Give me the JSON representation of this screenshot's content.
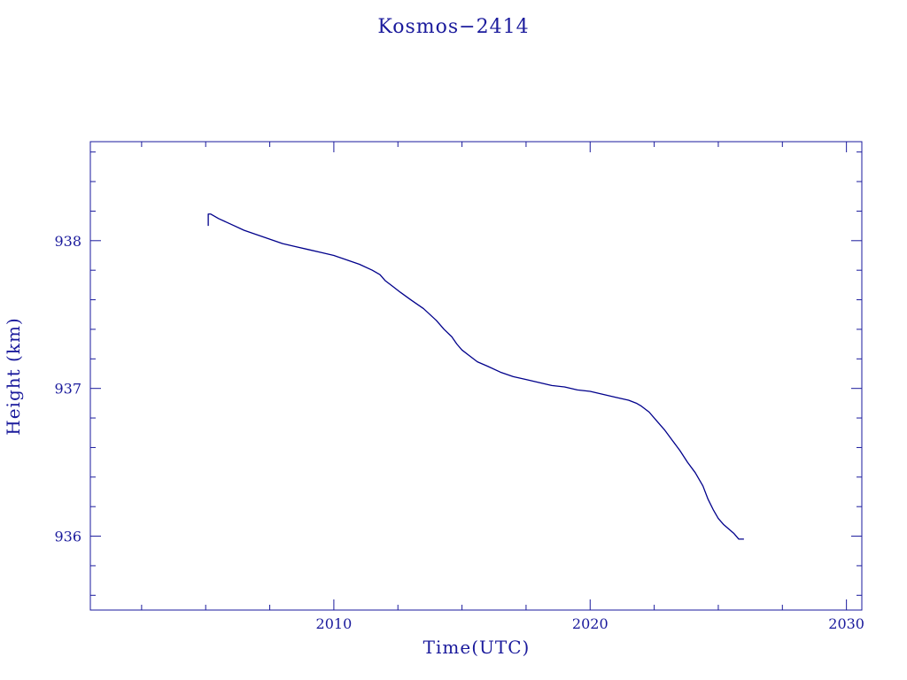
{
  "chart_data": {
    "type": "line",
    "title": "Kosmos−2414",
    "xlabel": "Time(UTC)",
    "ylabel": "Height (km)",
    "xlim": [
      2000.5,
      2030.6
    ],
    "ylim": [
      935.5,
      938.67
    ],
    "x_ticks": [
      2010,
      2020,
      2030
    ],
    "x_tick_labels": [
      "2010",
      "2020",
      "2030"
    ],
    "y_ticks": [
      936,
      937,
      938
    ],
    "y_tick_labels": [
      "936",
      "937",
      "938"
    ],
    "x_minor_step": 2.5,
    "y_minor_step": 0.2,
    "grid": false,
    "line_color": "#00008b",
    "text_color": "#1a1a9c",
    "axis_color": "#1a1a9c",
    "series": [
      {
        "x": [
          2005.1,
          2005.1,
          2005.2,
          2005.5,
          2006.0,
          2006.5,
          2007.0,
          2007.5,
          2008.0,
          2008.5,
          2009.0,
          2009.5,
          2010.0,
          2010.5,
          2011.0,
          2011.5,
          2011.8,
          2012.0,
          2012.3,
          2012.6,
          2013.0,
          2013.5,
          2014.0,
          2014.3,
          2014.6,
          2014.8,
          2015.0,
          2015.3,
          2015.6,
          2016.0,
          2016.5,
          2017.0,
          2017.5,
          2018.0,
          2018.5,
          2019.0,
          2019.5,
          2020.0,
          2020.5,
          2021.0,
          2021.5,
          2021.8,
          2022.0,
          2022.3,
          2022.6,
          2022.9,
          2023.2,
          2023.5,
          2023.8,
          2024.1,
          2024.4,
          2024.6,
          2024.8,
          2025.0,
          2025.2,
          2025.4,
          2025.6,
          2025.8,
          2026.0
        ],
        "y": [
          938.1,
          938.18,
          938.18,
          938.15,
          938.11,
          938.07,
          938.04,
          938.01,
          937.98,
          937.96,
          937.94,
          937.92,
          937.9,
          937.87,
          937.84,
          937.8,
          937.77,
          937.73,
          937.69,
          937.65,
          937.6,
          937.54,
          937.46,
          937.4,
          937.35,
          937.3,
          937.26,
          937.22,
          937.18,
          937.15,
          937.11,
          937.08,
          937.06,
          937.04,
          937.02,
          937.01,
          936.99,
          936.98,
          936.96,
          936.94,
          936.92,
          936.9,
          936.88,
          936.84,
          936.78,
          936.72,
          936.65,
          936.58,
          936.5,
          936.43,
          936.34,
          936.25,
          936.18,
          936.12,
          936.08,
          936.05,
          936.02,
          935.98,
          935.98
        ]
      }
    ]
  }
}
